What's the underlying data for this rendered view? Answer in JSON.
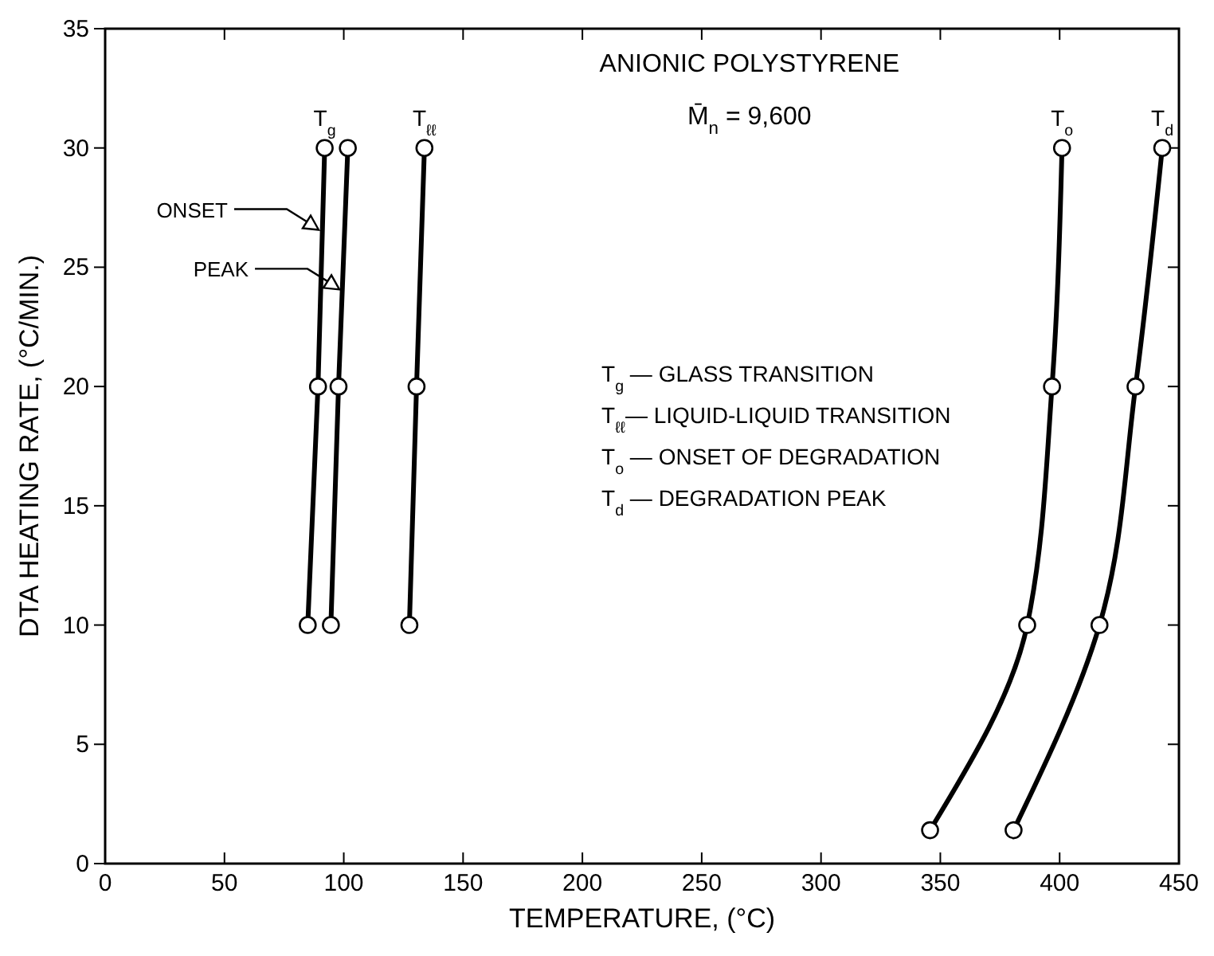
{
  "chart_data": {
    "type": "line",
    "title": "ANIONIC POLYSTYRENE",
    "subtitle": "M̄$_{n}$ = 9,600",
    "xlabel": "TEMPERATURE, (°C)",
    "ylabel": "DTA HEATING RATE, (°C/MIN.)",
    "series": [
      {
        "name": "T$_{g}$",
        "color": "#000000",
        "x": [
          84.9,
          89.2,
          92
        ],
        "values": [
          10,
          20,
          30
        ]
      },
      {
        "color": "#000000",
        "x": [
          94.6,
          97.8,
          101.7
        ],
        "values": [
          10,
          20,
          30
        ]
      },
      {
        "name": "T$_{ℓℓ}$",
        "color": "#000000",
        "x": [
          127.5,
          130.5,
          133.8
        ],
        "values": [
          10,
          20,
          30
        ]
      },
      {
        "name": "T$_{o}$",
        "color": "#000000",
        "x": [
          345.7,
          386.4,
          396.8,
          401
        ],
        "values": [
          1.4,
          10,
          20,
          30
        ]
      },
      {
        "name": "T$_{d}$",
        "color": "#000000",
        "x": [
          380.7,
          416.7,
          431.8,
          443
        ],
        "values": [
          1.4,
          10,
          20,
          30
        ]
      }
    ],
    "annotations": [
      {
        "text": "ONSET",
        "x": 90.8,
        "y": 26.5
      },
      {
        "text": "PEAK",
        "x": 99.5,
        "y": 24
      },
      "T$_{g}$ — GLASS TRANSITION",
      "T$_{ℓℓ}$— LIQUID-LIQUID TRANSITION",
      "T$_{o}$ — ONSET OF DEGRADATION",
      "T$_{d}$ — DEGRADATION PEAK"
    ],
    "xlim": [
      0,
      450
    ],
    "xticks": [
      0,
      50,
      100,
      150,
      200,
      250,
      300,
      350,
      400,
      450
    ],
    "ylim": [
      0,
      35
    ],
    "yticks": [
      0,
      5,
      10,
      15,
      20,
      25,
      30,
      35
    ],
    "grid": false,
    "marker": "circle",
    "line_style": "solid"
  }
}
